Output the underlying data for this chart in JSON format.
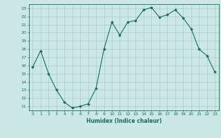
{
  "x": [
    0,
    1,
    2,
    3,
    4,
    5,
    6,
    7,
    8,
    9,
    10,
    11,
    12,
    13,
    14,
    15,
    16,
    17,
    18,
    19,
    20,
    21,
    22,
    23
  ],
  "y": [
    15.8,
    17.8,
    15.0,
    13.0,
    11.5,
    10.8,
    11.0,
    11.3,
    13.2,
    18.0,
    21.3,
    19.7,
    21.3,
    21.5,
    22.8,
    23.1,
    21.9,
    22.2,
    22.8,
    21.8,
    20.5,
    18.0,
    17.2,
    15.2
  ],
  "line_color": "#1a6b5a",
  "marker": "D",
  "marker_size": 1.8,
  "bg_color": "#cce8e4",
  "grid_color": "#aaccc8",
  "xlabel": "Humidex (Indice chaleur)",
  "xlim": [
    -0.5,
    23.5
  ],
  "ylim": [
    10.5,
    23.5
  ],
  "yticks": [
    11,
    12,
    13,
    14,
    15,
    16,
    17,
    18,
    19,
    20,
    21,
    22,
    23
  ],
  "xticks": [
    0,
    1,
    2,
    3,
    4,
    5,
    6,
    7,
    8,
    9,
    10,
    11,
    12,
    13,
    14,
    15,
    16,
    17,
    18,
    19,
    20,
    21,
    22,
    23
  ],
  "tick_fontsize": 4.5,
  "xlabel_fontsize": 5.5
}
